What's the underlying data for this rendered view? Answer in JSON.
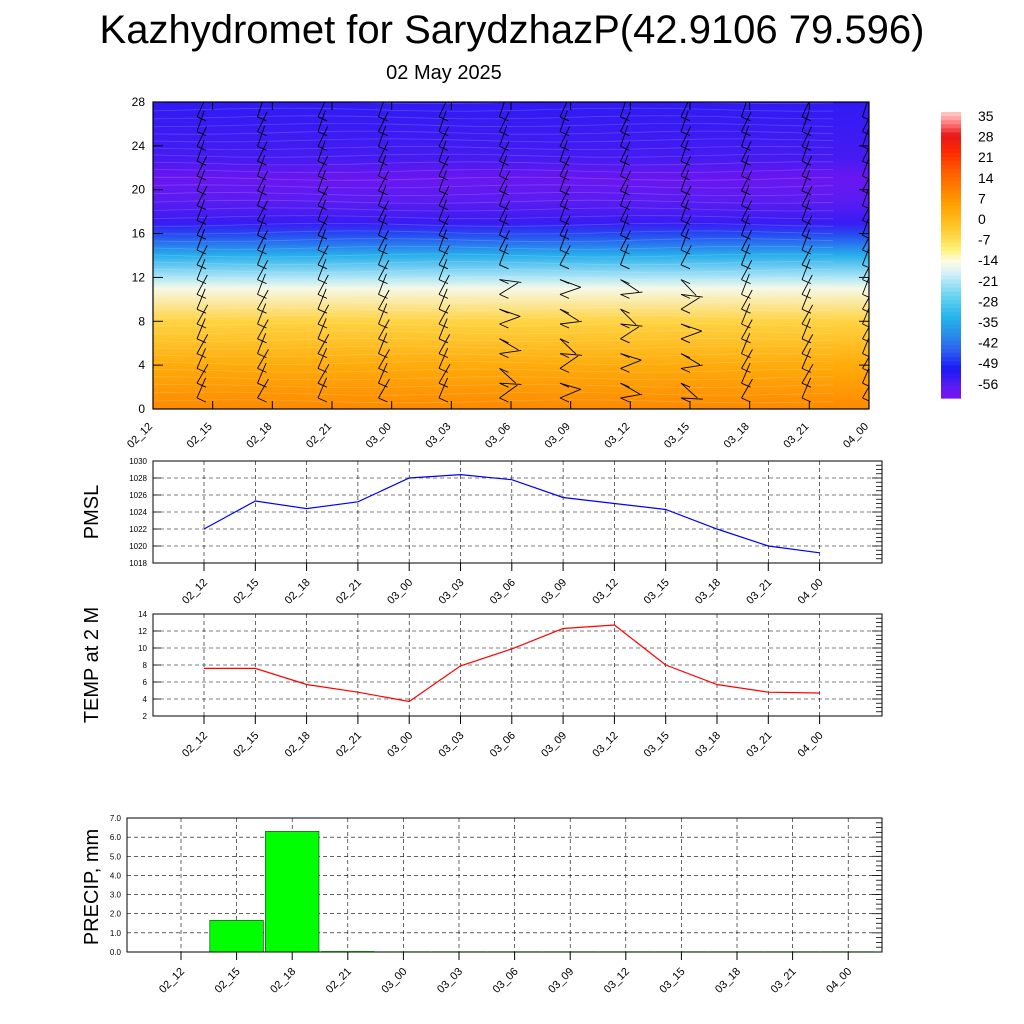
{
  "title": "Kazhydromet for SarydzhazP(42.9106 79.596)",
  "subtitle": "02 May 2025",
  "chart_data": [
    {
      "type": "heatmap",
      "name": "cross-section",
      "x_ticks": [
        "02_12",
        "02_15",
        "02_18",
        "02_21",
        "03_00",
        "03_03",
        "03_06",
        "03_09",
        "03_12",
        "03_15",
        "03_18",
        "03_21",
        "04_00"
      ],
      "y_ticks": [
        0,
        4,
        8,
        12,
        16,
        20,
        24,
        28
      ],
      "ylim": [
        0,
        28
      ],
      "colorbar": {
        "labels": [
          "35",
          "28",
          "21",
          "14",
          "7",
          "0",
          "-7",
          "-14",
          "-21",
          "-28",
          "-35",
          "-42",
          "-49",
          "-56"
        ],
        "range": [
          -60,
          38
        ]
      },
      "temperature_profile": [
        {
          "z": 0,
          "t": 10
        },
        {
          "z": 4,
          "t": 4
        },
        {
          "z": 8,
          "t": -4
        },
        {
          "z": 11,
          "t": -14
        },
        {
          "z": 12,
          "t": -20
        },
        {
          "z": 14,
          "t": -33
        },
        {
          "z": 16,
          "t": -46
        },
        {
          "z": 17,
          "t": -53
        },
        {
          "z": 19,
          "t": -56
        },
        {
          "z": 21,
          "t": -58
        },
        {
          "z": 23,
          "t": -54
        },
        {
          "z": 28,
          "t": -52
        }
      ],
      "wind_barbs": true
    },
    {
      "type": "line",
      "name": "pmsl",
      "ylabel": "PMSL",
      "x": [
        "02_12",
        "02_15",
        "02_18",
        "02_21",
        "03_00",
        "03_03",
        "03_06",
        "03_09",
        "03_12",
        "03_15",
        "03_18",
        "03_21",
        "04_00"
      ],
      "series": [
        {
          "values": [
            1022.0,
            1025.3,
            1024.4,
            1025.2,
            1028.0,
            1028.4,
            1027.8,
            1025.7,
            1025.0,
            1024.3,
            1022.0,
            1020.0,
            1019.2
          ],
          "color": "#0000ff"
        }
      ],
      "ylim": [
        1018,
        1030
      ],
      "y_ticks": [
        "1018",
        "1020",
        "1022",
        "1024",
        "1026",
        "1028",
        "1030"
      ],
      "grid": true
    },
    {
      "type": "line",
      "name": "temp",
      "ylabel": "TEMP at 2 M",
      "x": [
        "02_12",
        "02_15",
        "02_18",
        "02_21",
        "03_00",
        "03_03",
        "03_06",
        "03_09",
        "03_12",
        "03_15",
        "03_18",
        "03_21",
        "04_00"
      ],
      "series": [
        {
          "values": [
            7.6,
            7.6,
            5.7,
            4.8,
            3.7,
            7.9,
            9.9,
            12.3,
            12.7,
            8.0,
            5.7,
            4.8,
            4.7
          ],
          "color": "#ff0000"
        }
      ],
      "ylim": [
        2,
        14
      ],
      "y_ticks": [
        "2",
        "4",
        "6",
        "8",
        "10",
        "12",
        "14"
      ],
      "grid": true
    },
    {
      "type": "bar",
      "name": "precip",
      "ylabel": "PRECIP, mm",
      "categories": [
        "02_12",
        "02_15",
        "02_18",
        "02_21",
        "03_00",
        "03_03",
        "03_06",
        "03_09",
        "03_12",
        "03_15",
        "03_18",
        "03_21",
        "04_00"
      ],
      "values": [
        0,
        1.65,
        6.3,
        0.05,
        0.02,
        0,
        0,
        0,
        0,
        0,
        0,
        0,
        0
      ],
      "ylim": [
        0,
        7.0
      ],
      "y_ticks": [
        "0.0",
        "1.0",
        "2.0",
        "3.0",
        "4.0",
        "5.0",
        "6.0",
        "7.0"
      ],
      "bar_color": "#00ff00",
      "grid": true
    }
  ]
}
